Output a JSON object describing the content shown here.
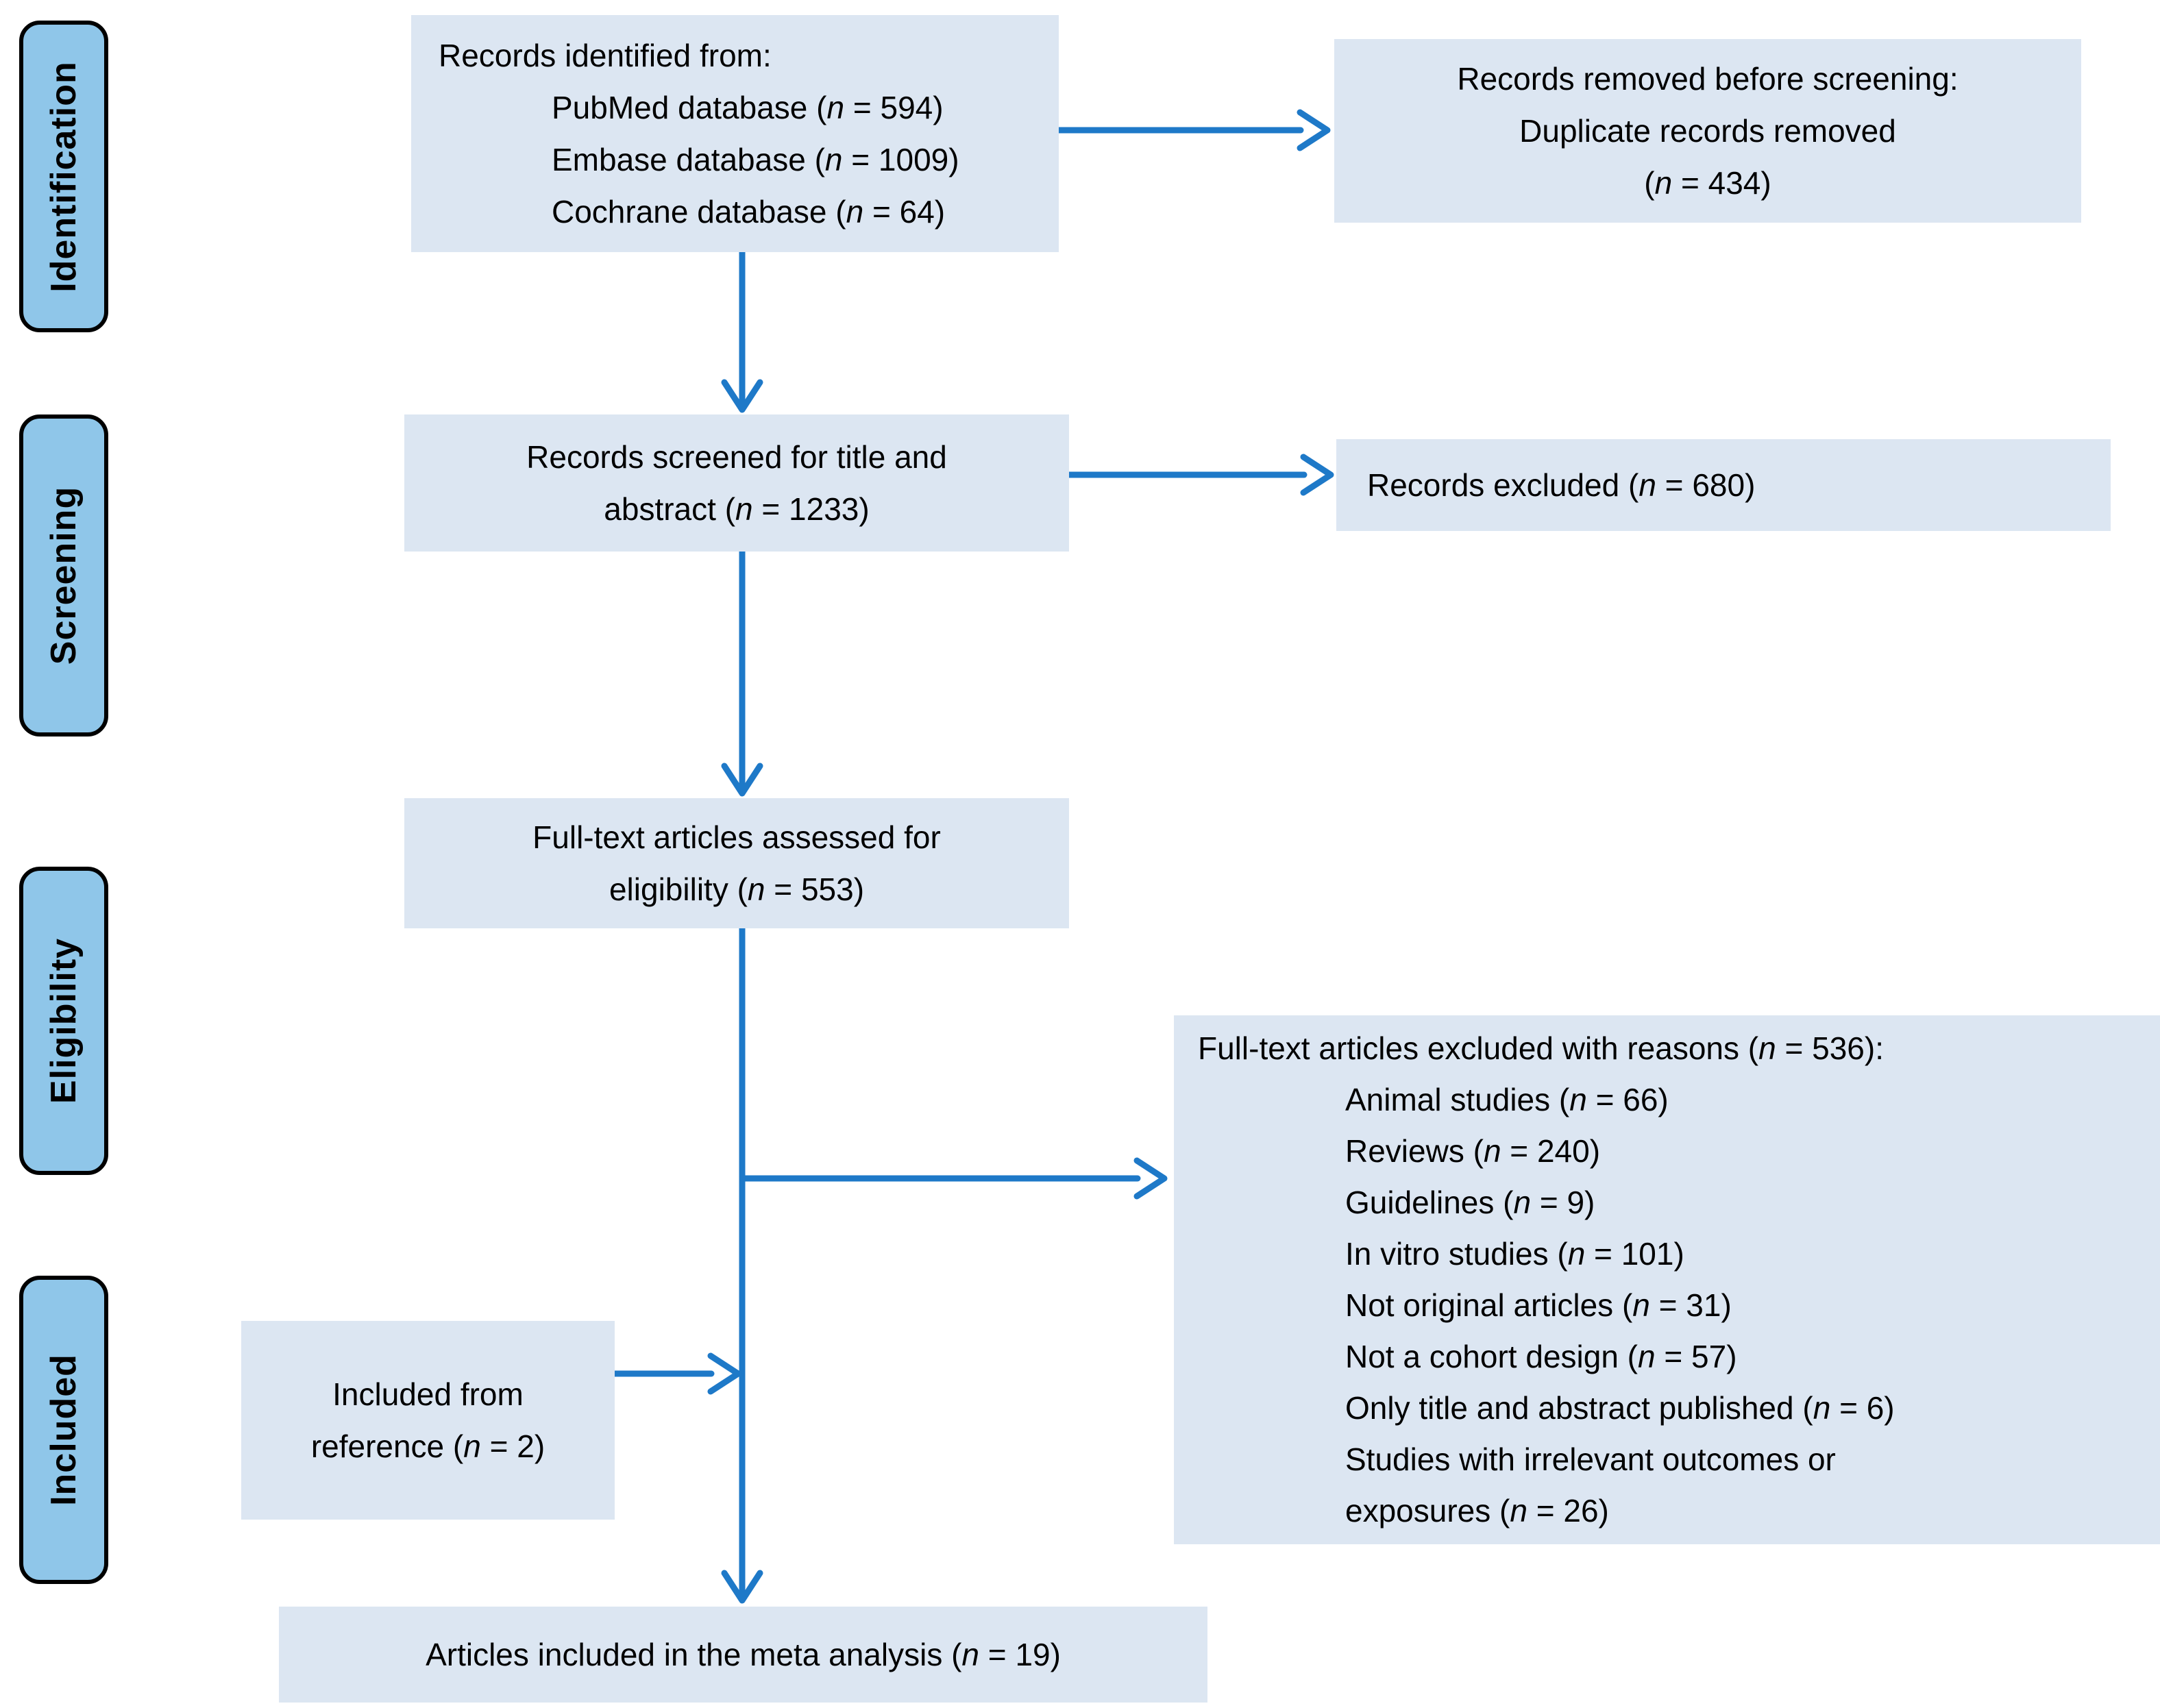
{
  "diagram": {
    "type": "prisma-flow",
    "stages": [
      "Identification",
      "Screening",
      "Eligibility",
      "Included"
    ],
    "boxes": {
      "identified": {
        "lines": [
          "Records identified from:",
          "PubMed database (n = 594)",
          "Embase database (n = 1009)",
          "Cochrane database (n = 64)"
        ]
      },
      "removed_before_screening": {
        "lines": [
          "Records removed before screening:",
          "Duplicate records removed",
          "(n = 434)"
        ]
      },
      "screened": {
        "lines": [
          "Records screened for title and",
          "abstract (n = 1233)"
        ]
      },
      "records_excluded": {
        "text": "Records excluded (n = 680)"
      },
      "fulltext_assessed": {
        "lines": [
          "Full-text articles assessed for",
          "eligibility (n = 553)"
        ]
      },
      "fulltext_excluded": {
        "title": "Full-text articles excluded with reasons (n = 536):",
        "reason_lines": [
          "Animal studies (n = 66)",
          "Reviews (n = 240)",
          "Guidelines (n = 9)",
          "In vitro studies (n = 101)",
          "Not original articles (n = 31)",
          "Not a cohort design (n = 57)",
          "Only title and abstract published (n = 6)",
          "Studies with irrelevant outcomes or",
          "exposures (n = 26)"
        ]
      },
      "included_from_reference": {
        "lines": [
          "Included from",
          "reference (n = 2)"
        ]
      },
      "meta_analysis_included": {
        "text": "Articles included in the meta analysis (n = 19)"
      }
    },
    "colors": {
      "box_fill": "#dce6f2",
      "stage_fill": "#8fc6e9",
      "stage_border": "#000000",
      "arrow": "#1e79c8",
      "text": "#000000",
      "background": "#ffffff"
    }
  }
}
